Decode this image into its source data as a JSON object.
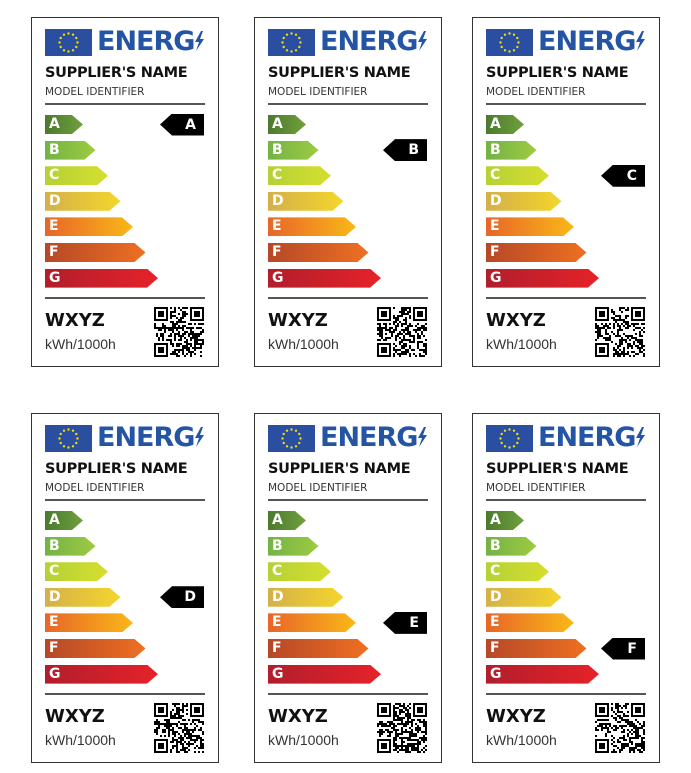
{
  "label_template": {
    "brand_text": "ENERG",
    "supplier": "SUPPLIER'S NAME",
    "model": "MODEL IDENTIFIER",
    "value": "WXYZ",
    "unit": "kWh/1000h"
  },
  "classes": [
    {
      "letter": "A",
      "colors": [
        "#4b7a2f",
        "#70a03c"
      ]
    },
    {
      "letter": "B",
      "colors": [
        "#73b245",
        "#9ecb42"
      ]
    },
    {
      "letter": "C",
      "colors": [
        "#b4d236",
        "#d6de2f"
      ]
    },
    {
      "letter": "D",
      "colors": [
        "#d4b04a",
        "#f4d62b"
      ]
    },
    {
      "letter": "E",
      "colors": [
        "#e86528",
        "#f9b818"
      ]
    },
    {
      "letter": "F",
      "colors": [
        "#b54827",
        "#ef7022"
      ]
    },
    {
      "letter": "G",
      "colors": [
        "#b11e2c",
        "#e62229"
      ]
    }
  ],
  "labels": [
    {
      "rating": "A"
    },
    {
      "rating": "B"
    },
    {
      "rating": "C"
    },
    {
      "rating": "D"
    },
    {
      "rating": "E"
    },
    {
      "rating": "F"
    }
  ],
  "colors": {
    "eu_blue": "#2a4ea0",
    "eu_star": "#f5d90a",
    "brand_blue": "#2455a4"
  }
}
